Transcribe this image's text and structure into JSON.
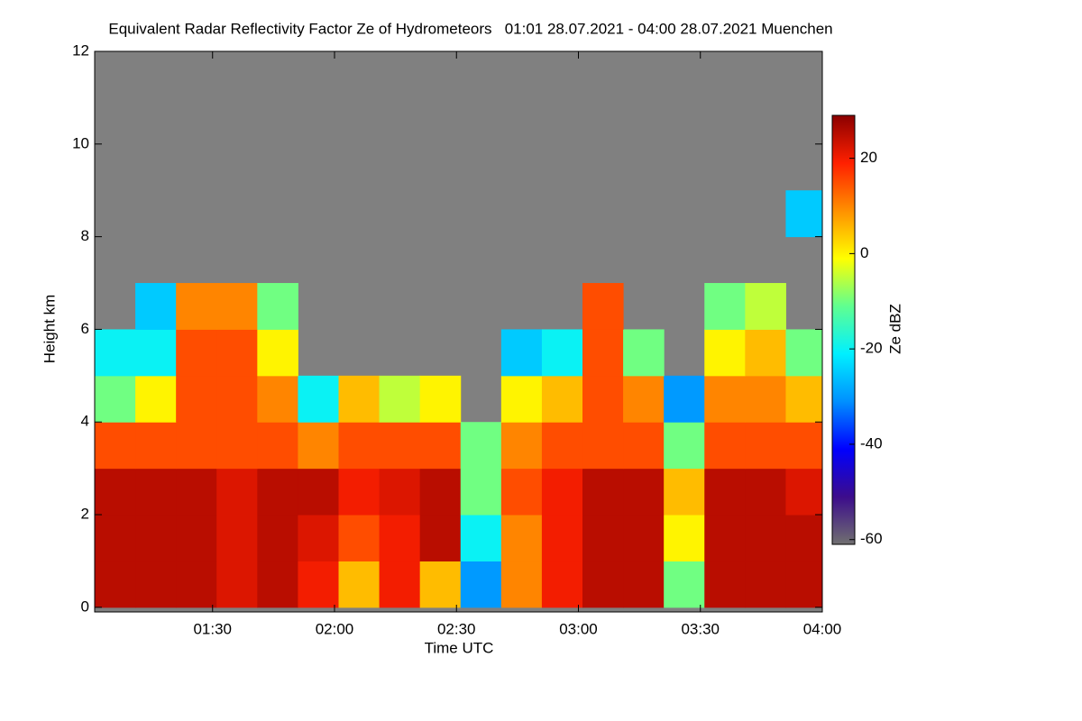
{
  "chart_data": {
    "type": "heatmap",
    "title": "Equivalent Radar Reflectivity Factor Ze of Hydrometeors   01:01 28.07.2021 - 04:00 28.07.2021 Muenchen",
    "x_label": "Time UTC",
    "y_label": "Height km",
    "colorbar_label": "Ze dBZ",
    "xlim": [
      61,
      240
    ],
    "xticks": [
      {
        "value": 90,
        "label": "01:30"
      },
      {
        "value": 120,
        "label": "02:00"
      },
      {
        "value": 150,
        "label": "02:30"
      },
      {
        "value": 180,
        "label": "03:00"
      },
      {
        "value": 210,
        "label": "03:30"
      },
      {
        "value": 240,
        "label": "04:00"
      }
    ],
    "ylim": [
      -0.1,
      12
    ],
    "yticks": [
      0,
      2,
      4,
      6,
      8,
      10,
      12
    ],
    "clim": [
      -61,
      29
    ],
    "cticks": [
      -60,
      -40,
      -20,
      0,
      20
    ],
    "colormap": [
      "#707070",
      "#3c0c8c",
      "#0000ff",
      "#0090ff",
      "#00f0ff",
      "#60ff90",
      "#ffff00",
      "#ff9000",
      "#ff2000",
      "#8b0000"
    ],
    "background": "#808080",
    "x_edges": [
      61,
      71,
      81,
      91,
      101,
      111,
      121,
      131,
      141,
      151,
      161,
      171,
      181,
      191,
      201,
      211,
      221,
      231,
      240
    ],
    "y_edges": [
      0,
      1,
      2,
      3,
      4,
      5,
      6,
      7,
      8,
      9,
      10,
      11,
      12
    ],
    "z": [
      [
        25,
        25,
        25,
        22,
        25,
        20,
        5,
        20,
        5,
        -30,
        10,
        20,
        25,
        25,
        -10,
        25,
        25,
        25
      ],
      [
        25,
        25,
        25,
        22,
        25,
        22,
        15,
        20,
        25,
        -20,
        10,
        20,
        25,
        25,
        0,
        25,
        25,
        25
      ],
      [
        25,
        25,
        25,
        22,
        25,
        25,
        20,
        22,
        25,
        -10,
        15,
        20,
        25,
        25,
        5,
        25,
        25,
        22
      ],
      [
        15,
        15,
        15,
        15,
        15,
        10,
        15,
        15,
        15,
        -10,
        10,
        15,
        15,
        15,
        -10,
        15,
        15,
        15
      ],
      [
        -10,
        0,
        15,
        15,
        10,
        -20,
        5,
        -5,
        0,
        null,
        0,
        5,
        15,
        10,
        -30,
        10,
        10,
        5
      ],
      [
        -20,
        -20,
        15,
        15,
        0,
        null,
        null,
        null,
        null,
        null,
        -25,
        -20,
        15,
        -10,
        null,
        0,
        5,
        -10
      ],
      [
        null,
        -25,
        10,
        10,
        -10,
        null,
        null,
        null,
        null,
        null,
        null,
        null,
        15,
        null,
        null,
        -10,
        -5,
        null
      ],
      [
        null,
        null,
        null,
        null,
        null,
        null,
        null,
        null,
        null,
        null,
        null,
        null,
        null,
        null,
        null,
        null,
        null,
        null
      ],
      [
        null,
        null,
        null,
        null,
        null,
        null,
        null,
        null,
        null,
        null,
        null,
        null,
        null,
        null,
        null,
        null,
        null,
        -25
      ],
      [
        null,
        null,
        null,
        null,
        null,
        null,
        null,
        null,
        null,
        null,
        null,
        null,
        null,
        null,
        null,
        null,
        null,
        null
      ],
      [
        null,
        null,
        null,
        null,
        null,
        null,
        null,
        null,
        null,
        null,
        null,
        null,
        null,
        null,
        null,
        null,
        null,
        null
      ],
      [
        null,
        null,
        null,
        null,
        null,
        null,
        null,
        null,
        null,
        null,
        null,
        null,
        null,
        null,
        null,
        null,
        null,
        null
      ]
    ]
  }
}
